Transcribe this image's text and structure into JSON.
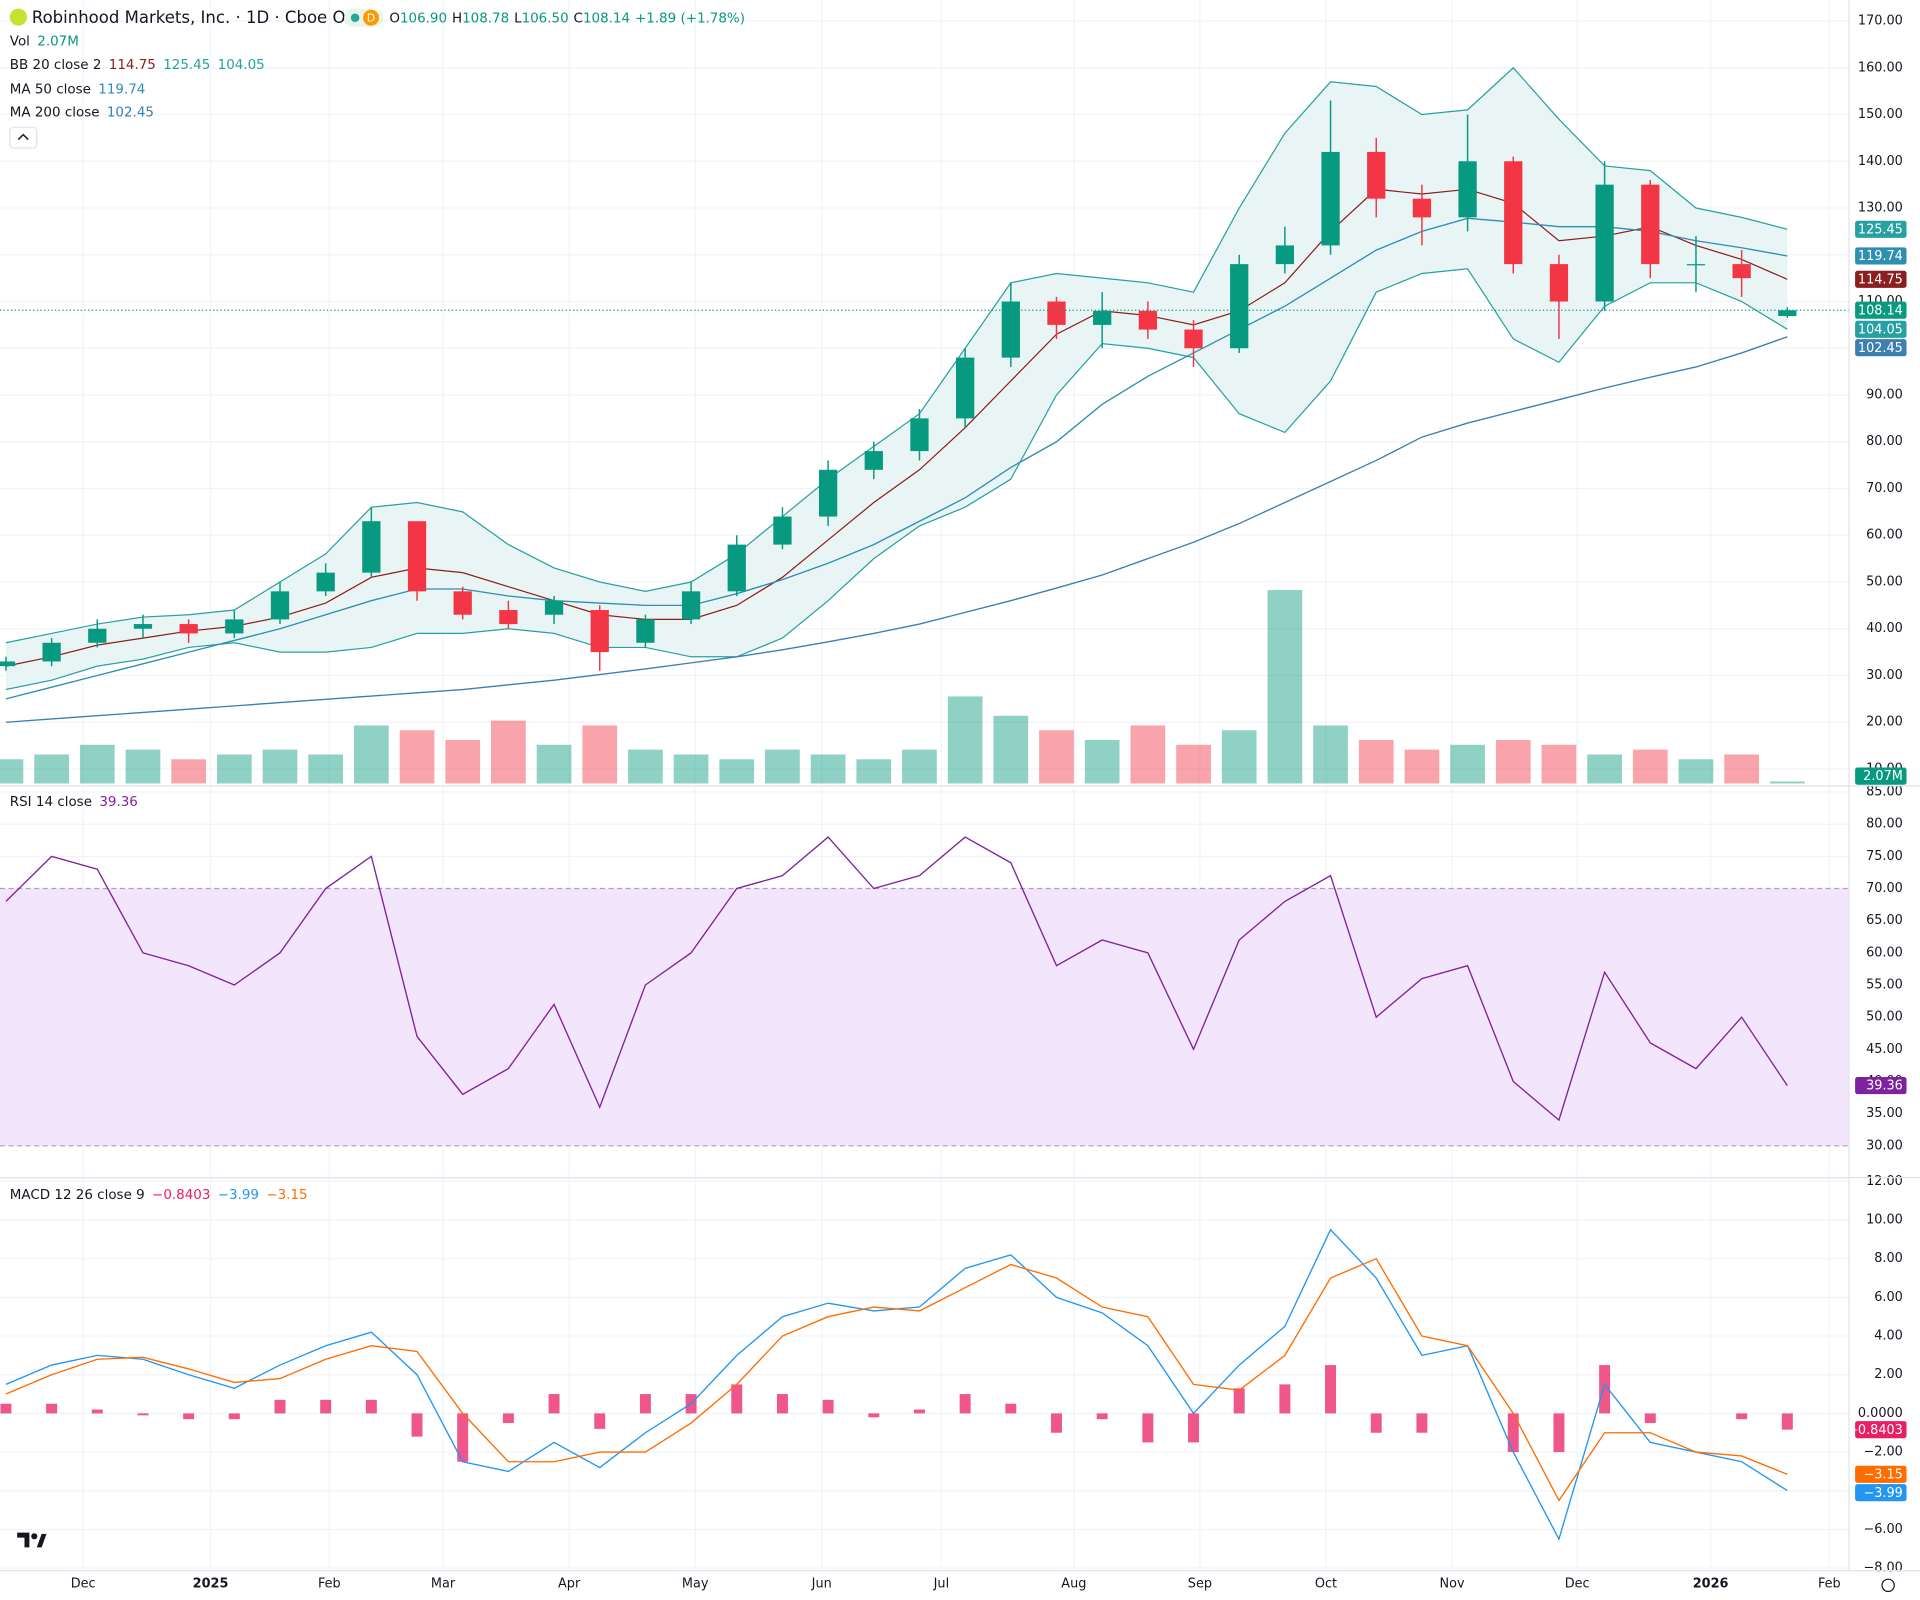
{
  "header": {
    "title": "Robinhood Markets, Inc. · 1D · Cboe One",
    "badge": "D",
    "ohlc": [
      {
        "label": "O",
        "value": "106.90"
      },
      {
        "label": "H",
        "value": "108.78"
      },
      {
        "label": "L",
        "value": "106.50"
      },
      {
        "label": "C",
        "value": "108.14"
      }
    ],
    "change": "+1.89 (+1.78%)"
  },
  "chart_data": [
    {
      "type": "candlestick",
      "x": [
        0,
        1,
        2,
        3,
        4,
        5,
        6,
        7,
        8,
        9,
        10,
        11,
        12,
        13,
        14,
        15,
        16,
        17,
        18,
        19,
        20,
        21,
        22,
        23,
        24,
        25,
        26,
        27,
        28,
        29,
        30,
        31,
        32,
        33,
        34,
        35,
        36,
        37,
        38,
        39
      ],
      "open": [
        32,
        33,
        37,
        40,
        41,
        39,
        42,
        48,
        52,
        63,
        48,
        44,
        43,
        44,
        37,
        42,
        48,
        58,
        64,
        74,
        78,
        85,
        98,
        110,
        105,
        108,
        104,
        100,
        118,
        122,
        142,
        132,
        128,
        140,
        118,
        110,
        135,
        118,
        118,
        106.9
      ],
      "high": [
        34,
        38,
        42,
        43,
        42,
        44,
        50,
        54,
        66,
        63,
        49,
        46,
        47,
        45,
        43,
        50,
        60,
        66,
        76,
        80,
        87,
        100,
        114,
        111,
        112,
        110,
        106,
        120,
        126,
        153,
        145,
        135,
        150,
        141,
        120,
        140,
        136,
        124,
        121,
        108.78
      ],
      "low": [
        31,
        32,
        36,
        38,
        37,
        38,
        41,
        47,
        51,
        46,
        42,
        40,
        41,
        31,
        36,
        41,
        47,
        57,
        62,
        72,
        76,
        83,
        96,
        102,
        100,
        102,
        96,
        99,
        116,
        120,
        128,
        122,
        125,
        116,
        102,
        108,
        115,
        112,
        111,
        106.5
      ],
      "close": [
        33,
        37,
        40,
        41,
        39,
        42,
        48,
        52,
        63,
        48,
        43,
        41,
        46,
        35,
        42,
        48,
        58,
        64,
        74,
        78,
        85,
        98,
        110,
        105,
        108,
        104,
        100,
        118,
        122,
        142,
        132,
        128,
        140,
        118,
        110,
        135,
        118,
        118,
        115,
        108.14
      ],
      "up_color": "#089981",
      "down_color": "#f23645",
      "volume": {
        "name": "Vol",
        "legend_values": [
          "2.07M"
        ],
        "values": [
          25,
          30,
          40,
          35,
          25,
          30,
          35,
          30,
          60,
          55,
          45,
          65,
          40,
          60,
          35,
          30,
          25,
          35,
          30,
          25,
          35,
          90,
          70,
          55,
          45,
          60,
          40,
          55,
          200,
          60,
          45,
          35,
          40,
          45,
          40,
          30,
          35,
          25,
          30,
          2.07
        ]
      },
      "series": [
        {
          "name": "BB 20 close 2",
          "legend_values": [
            "114.75",
            "125.45",
            "104.05"
          ],
          "color": "#26a1a1",
          "basis_color": "#8b1e1e",
          "fill": "#e8f5f4",
          "basis": [
            32,
            34,
            36.5,
            38,
            39.5,
            40.5,
            42.5,
            45.5,
            51,
            53,
            52,
            49,
            46,
            43,
            42,
            42,
            45,
            51,
            59,
            67,
            74,
            83,
            93,
            103,
            108,
            107,
            105,
            108,
            114,
            125,
            134,
            133,
            134,
            131,
            123,
            124,
            126,
            122,
            119,
            114.75
          ],
          "upper": [
            37,
            39,
            41,
            42.5,
            43,
            44,
            50,
            56,
            66,
            67,
            65,
            58,
            53,
            50,
            48,
            50,
            56,
            64,
            72,
            79,
            86,
            100,
            114,
            116,
            115,
            114,
            112,
            130,
            146,
            157,
            156,
            150,
            151,
            160,
            149,
            139,
            138,
            130,
            128,
            125.45
          ],
          "lower": [
            27,
            29,
            32,
            33.5,
            36,
            37,
            35,
            35,
            36,
            39,
            39,
            40,
            39,
            36,
            36,
            34,
            34,
            38,
            46,
            55,
            62,
            66,
            72,
            90,
            101,
            100,
            98,
            86,
            82,
            93,
            112,
            116,
            117,
            102,
            97,
            109,
            114,
            114,
            110,
            104.05
          ]
        },
        {
          "name": "MA 50 close",
          "legend_values": [
            "119.74"
          ],
          "color": "#2f8fb0",
          "values": [
            25,
            27.5,
            30,
            32.5,
            35,
            37.5,
            40,
            43,
            46,
            48.5,
            48.5,
            47,
            46,
            45.5,
            45,
            45,
            47.5,
            50.5,
            54,
            58,
            63,
            68,
            74.5,
            80,
            88,
            94,
            99,
            104,
            109,
            115,
            121,
            125,
            127.8,
            127,
            126,
            126,
            125,
            123,
            121.5,
            119.74
          ]
        },
        {
          "name": "MA 200 close",
          "legend_values": [
            "102.45"
          ],
          "color": "#3d7fb0",
          "values": [
            20,
            20.7,
            21.4,
            22.1,
            22.8,
            23.5,
            24.2,
            24.9,
            25.6,
            26.3,
            27,
            28,
            29,
            30.2,
            31.4,
            32.7,
            34,
            35.5,
            37.2,
            39,
            41,
            43.5,
            46,
            48.7,
            51.5,
            55,
            58.5,
            62.5,
            67,
            71.5,
            76,
            81,
            84,
            86.5,
            89,
            91.5,
            93.8,
            96,
            99,
            102.45
          ]
        }
      ],
      "xlim": [
        -0.13,
        40.35
      ],
      "xticks": [
        {
          "value": 1.69,
          "label": "Dec"
        },
        {
          "value": 4.48,
          "label": "2025"
        },
        {
          "value": 7.08,
          "label": "Feb"
        },
        {
          "value": 9.57,
          "label": "Mar"
        },
        {
          "value": 12.33,
          "label": "Apr"
        },
        {
          "value": 15.09,
          "label": "May"
        },
        {
          "value": 17.86,
          "label": "Jun"
        },
        {
          "value": 20.48,
          "label": "Jul"
        },
        {
          "value": 23.38,
          "label": "Aug"
        },
        {
          "value": 26.14,
          "label": "Sep"
        },
        {
          "value": 28.9,
          "label": "Oct"
        },
        {
          "value": 31.66,
          "label": "Nov"
        },
        {
          "value": 34.4,
          "label": "Dec"
        },
        {
          "value": 37.32,
          "label": "2026"
        },
        {
          "value": 39.92,
          "label": "Feb"
        }
      ],
      "ylim": [
        6.9,
        174.5
      ],
      "yticks": [
        {
          "value": 10,
          "label": "10.00"
        },
        {
          "value": 20,
          "label": "20.00"
        },
        {
          "value": 30,
          "label": "30.00"
        },
        {
          "value": 40,
          "label": "40.00"
        },
        {
          "value": 50,
          "label": "50.00"
        },
        {
          "value": 60,
          "label": "60.00"
        },
        {
          "value": 70,
          "label": "70.00"
        },
        {
          "value": 80,
          "label": "80.00"
        },
        {
          "value": 90,
          "label": "90.00"
        },
        {
          "value": 100,
          "label": "100.00"
        },
        {
          "value": 110,
          "label": "110.00"
        },
        {
          "value": 120,
          "label": "120.00"
        },
        {
          "value": 130,
          "label": "130.00"
        },
        {
          "value": 140,
          "label": "140.00"
        },
        {
          "value": 150,
          "label": "150.00"
        },
        {
          "value": 160,
          "label": "160.00"
        },
        {
          "value": 170,
          "label": "170.00"
        }
      ],
      "grid": true
    },
    {
      "type": "line",
      "series": [
        {
          "name": "RSI 14 close",
          "legend_values": [
            "39.36"
          ],
          "color": "#7e22a0",
          "values": [
            68,
            75,
            73,
            60,
            58,
            55,
            60,
            70,
            75,
            47,
            38,
            42,
            52,
            36,
            55,
            60,
            70,
            72,
            78,
            70,
            72,
            78,
            74,
            58,
            62,
            60,
            45,
            62,
            68,
            72,
            50,
            56,
            58,
            40,
            34,
            57,
            46,
            42,
            50,
            39.36
          ]
        }
      ],
      "band": [
        30,
        70
      ],
      "band_color": "#f3e5fb",
      "ylim": [
        25.05,
        85.76
      ],
      "yticks": [
        {
          "value": 30,
          "label": "30.00"
        },
        {
          "value": 35,
          "label": "35.00"
        },
        {
          "value": 40,
          "label": "40.00"
        },
        {
          "value": 45,
          "label": "45.00"
        },
        {
          "value": 50,
          "label": "50.00"
        },
        {
          "value": 55,
          "label": "55.00"
        },
        {
          "value": 60,
          "label": "60.00"
        },
        {
          "value": 65,
          "label": "65.00"
        },
        {
          "value": 70,
          "label": "70.00"
        },
        {
          "value": 75,
          "label": "75.00"
        },
        {
          "value": 80,
          "label": "80.00"
        },
        {
          "value": 85,
          "label": "85.00"
        }
      ],
      "grid": true
    },
    {
      "type": "macd",
      "series": [
        {
          "name": "MACD 12 26 close 9",
          "legend_values": [
            "−0.8403",
            "−3.99",
            "−3.15"
          ],
          "hist_color": "#e91e63",
          "macd_color": "#2196f3",
          "signal_color": "#ff6d00",
          "histogram": [
            0.5,
            0.5,
            0.2,
            -0.1,
            -0.3,
            -0.3,
            0.7,
            0.7,
            0.7,
            -1.2,
            -2.5,
            -0.5,
            1,
            -0.8,
            1,
            1,
            1.5,
            1,
            0.7,
            -0.2,
            0.2,
            1,
            0.5,
            -1,
            -0.3,
            -1.5,
            -1.5,
            1.3,
            1.5,
            2.5,
            -1,
            -1,
            0,
            -2,
            -2,
            2.5,
            -0.5,
            0,
            -0.3,
            -0.8403
          ],
          "macd": [
            1.5,
            2.5,
            3,
            2.8,
            2,
            1.3,
            2.5,
            3.5,
            4.2,
            2,
            -2.5,
            -3,
            -1.5,
            -2.8,
            -1,
            0.5,
            3,
            5,
            5.7,
            5.3,
            5.5,
            7.5,
            8.2,
            6,
            5.2,
            3.5,
            0,
            2.5,
            4.5,
            9.5,
            7,
            3,
            3.5,
            -2,
            -6.5,
            1.5,
            -1.5,
            -2,
            -2.5,
            -3.99
          ],
          "signal": [
            1,
            2,
            2.8,
            2.9,
            2.3,
            1.6,
            1.8,
            2.8,
            3.5,
            3.2,
            0,
            -2.5,
            -2.5,
            -2,
            -2,
            -0.5,
            1.5,
            4,
            5,
            5.5,
            5.3,
            6.5,
            7.7,
            7,
            5.5,
            5,
            1.5,
            1.2,
            3,
            7,
            8,
            4,
            3.5,
            0,
            -4.5,
            -1,
            -1,
            -2,
            -2.2,
            -3.15
          ]
        }
      ],
      "ylim": [
        -8.13,
        12.19
      ],
      "yticks": [
        {
          "value": 12,
          "label": "12.00"
        },
        {
          "value": 10,
          "label": "10.00"
        },
        {
          "value": 8,
          "label": "8.00"
        },
        {
          "value": 6,
          "label": "6.00"
        },
        {
          "value": 4,
          "label": "4.00"
        },
        {
          "value": 2,
          "label": "2.00"
        },
        {
          "value": 0,
          "label": "0.0000"
        },
        {
          "value": -2,
          "label": "−2.00"
        },
        {
          "value": -4,
          "label": "−4.00"
        },
        {
          "value": -6,
          "label": "−6.00"
        },
        {
          "value": -8,
          "label": "−8.00"
        }
      ],
      "grid": true
    }
  ]
}
